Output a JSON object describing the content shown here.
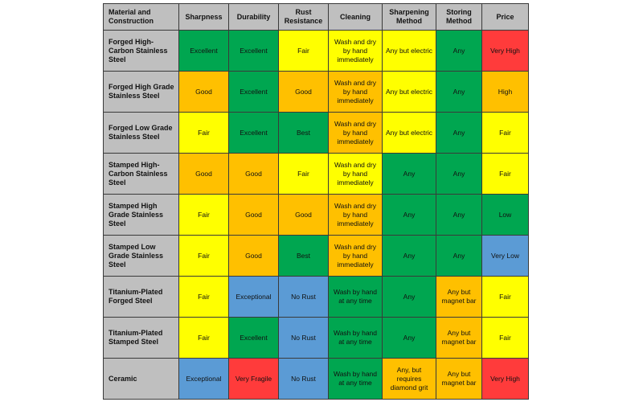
{
  "colors": {
    "green": "#00a650",
    "yellow": "#ffff00",
    "orange": "#ffc000",
    "red": "#ff3b3b",
    "blue": "#5b9bd5",
    "header": "#bfbfbf"
  },
  "headers": [
    "Material and Construction",
    "Sharpness",
    "Durability",
    "Rust Resistance",
    "Cleaning",
    "Sharpening Method",
    "Storing Method",
    "Price"
  ],
  "rows": [
    {
      "material": "Forged High-Carbon Stainless Steel",
      "cells": [
        {
          "text": "Excellent",
          "color": "green"
        },
        {
          "text": "Excellent",
          "color": "green"
        },
        {
          "text": "Fair",
          "color": "yellow"
        },
        {
          "text": "Wash and dry by hand immediately",
          "color": "yellow"
        },
        {
          "text": "Any but electric",
          "color": "yellow"
        },
        {
          "text": "Any",
          "color": "green"
        },
        {
          "text": "Very High",
          "color": "red"
        }
      ]
    },
    {
      "material": "Forged High Grade Stainless Steel",
      "cells": [
        {
          "text": "Good",
          "color": "orange"
        },
        {
          "text": "Excellent",
          "color": "green"
        },
        {
          "text": "Good",
          "color": "orange"
        },
        {
          "text": "Wash and dry by hand immediately",
          "color": "orange"
        },
        {
          "text": "Any but electric",
          "color": "yellow"
        },
        {
          "text": "Any",
          "color": "green"
        },
        {
          "text": "High",
          "color": "orange"
        }
      ]
    },
    {
      "material": "Forged Low Grade Stainless Steel",
      "cells": [
        {
          "text": "Fair",
          "color": "yellow"
        },
        {
          "text": "Excellent",
          "color": "green"
        },
        {
          "text": "Best",
          "color": "green"
        },
        {
          "text": "Wash and dry by hand immediately",
          "color": "orange"
        },
        {
          "text": "Any but electric",
          "color": "yellow"
        },
        {
          "text": "Any",
          "color": "green"
        },
        {
          "text": "Fair",
          "color": "yellow"
        }
      ]
    },
    {
      "material": "Stamped High-Carbon Stainless Steel",
      "cells": [
        {
          "text": "Good",
          "color": "orange"
        },
        {
          "text": "Good",
          "color": "orange"
        },
        {
          "text": "Fair",
          "color": "yellow"
        },
        {
          "text": "Wash and dry by hand immediately",
          "color": "yellow"
        },
        {
          "text": "Any",
          "color": "green"
        },
        {
          "text": "Any",
          "color": "green"
        },
        {
          "text": "Fair",
          "color": "yellow"
        }
      ]
    },
    {
      "material": "Stamped High Grade Stainless Steel",
      "cells": [
        {
          "text": "Fair",
          "color": "yellow"
        },
        {
          "text": "Good",
          "color": "orange"
        },
        {
          "text": "Good",
          "color": "orange"
        },
        {
          "text": "Wash and dry by hand immediately",
          "color": "orange"
        },
        {
          "text": "Any",
          "color": "green"
        },
        {
          "text": "Any",
          "color": "green"
        },
        {
          "text": "Low",
          "color": "green"
        }
      ]
    },
    {
      "material": "Stamped Low Grade Stainless Steel",
      "cells": [
        {
          "text": "Fair",
          "color": "yellow"
        },
        {
          "text": "Good",
          "color": "orange"
        },
        {
          "text": "Best",
          "color": "green"
        },
        {
          "text": "Wash and dry by hand immediately",
          "color": "orange"
        },
        {
          "text": "Any",
          "color": "green"
        },
        {
          "text": "Any",
          "color": "green"
        },
        {
          "text": "Very Low",
          "color": "blue"
        }
      ]
    },
    {
      "material": "Titanium-Plated Forged Steel",
      "cells": [
        {
          "text": "Fair",
          "color": "yellow"
        },
        {
          "text": "Exceptional",
          "color": "blue"
        },
        {
          "text": "No Rust",
          "color": "blue"
        },
        {
          "text": "Wash by hand at any time",
          "color": "green"
        },
        {
          "text": "Any",
          "color": "green"
        },
        {
          "text": "Any but magnet bar",
          "color": "orange"
        },
        {
          "text": "Fair",
          "color": "yellow"
        }
      ]
    },
    {
      "material": "Titanium-Plated Stamped Steel",
      "cells": [
        {
          "text": "Fair",
          "color": "yellow"
        },
        {
          "text": "Excellent",
          "color": "green"
        },
        {
          "text": "No Rust",
          "color": "blue"
        },
        {
          "text": "Wash by hand at any time",
          "color": "green"
        },
        {
          "text": "Any",
          "color": "green"
        },
        {
          "text": "Any but magnet bar",
          "color": "orange"
        },
        {
          "text": "Fair",
          "color": "yellow"
        }
      ]
    },
    {
      "material": "Ceramic",
      "cells": [
        {
          "text": "Exceptional",
          "color": "blue"
        },
        {
          "text": "Very Fragile",
          "color": "red"
        },
        {
          "text": "No Rust",
          "color": "blue"
        },
        {
          "text": "Wash by hand at any time",
          "color": "green"
        },
        {
          "text": "Any, but requires diamond grit",
          "color": "orange"
        },
        {
          "text": "Any but magnet bar",
          "color": "orange"
        },
        {
          "text": "Very High",
          "color": "red"
        }
      ]
    }
  ]
}
